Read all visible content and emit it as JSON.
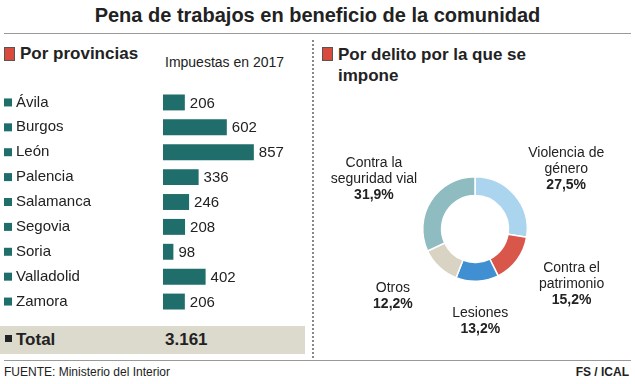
{
  "title": "Pena de trabajos en beneficio de la comunidad",
  "source": "FUENTE: Ministerio del Interior",
  "credit": "FS / ICAL",
  "chart_data": [
    {
      "type": "bar",
      "title": "Por provincias",
      "subtitle": "Impuestas en 2017",
      "orientation": "horizontal",
      "categories": [
        "Ávila",
        "Burgos",
        "León",
        "Palencia",
        "Salamanca",
        "Segovia",
        "Soria",
        "Valladolid",
        "Zamora"
      ],
      "values": [
        206,
        602,
        857,
        336,
        246,
        208,
        98,
        402,
        206
      ],
      "color": "#1f6e6b",
      "data_labels": true,
      "tick_labels": "y",
      "grid": false,
      "total_label": "Total",
      "total": 3161,
      "total_value_label": "3.161"
    },
    {
      "type": "doughnut",
      "title": "Por delito por la que se impone",
      "categories": [
        "Violencia de género",
        "Contra el patrimonio",
        "Lesiones",
        "Otros",
        "Contra la seguridad vial"
      ],
      "values": [
        27.5,
        15.2,
        13.2,
        12.2,
        31.9
      ],
      "value_labels": [
        "27,5%",
        "15,2%",
        "13,2%",
        "12,2%",
        "31,9%"
      ],
      "colors": [
        "#abd4ee",
        "#d9564b",
        "#3f8fd2",
        "#d8d3c3",
        "#8fbcc0"
      ],
      "data_labels": true
    }
  ]
}
